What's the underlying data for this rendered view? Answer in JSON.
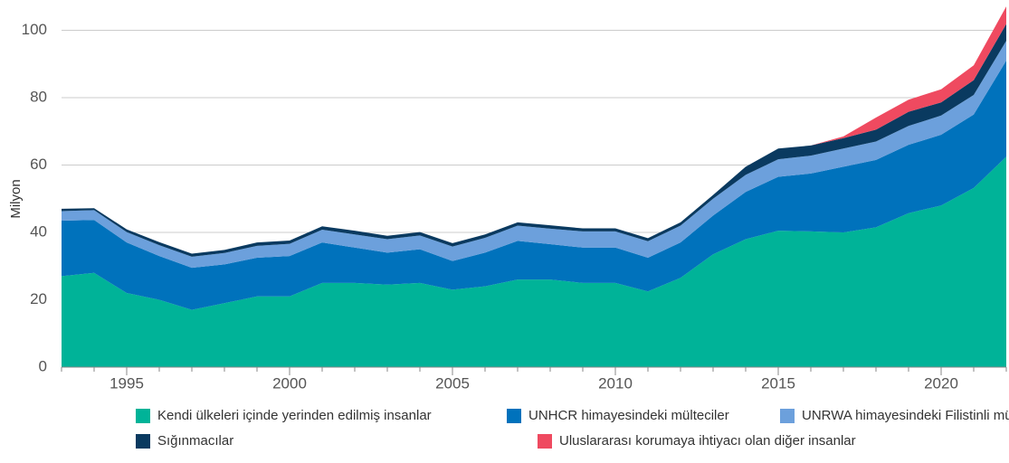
{
  "chart_data": {
    "type": "stacked_area",
    "y_label": "Milyon",
    "x": [
      1993,
      1994,
      1995,
      1996,
      1997,
      1998,
      1999,
      2000,
      2001,
      2002,
      2003,
      2004,
      2005,
      2006,
      2007,
      2008,
      2009,
      2010,
      2011,
      2012,
      2013,
      2014,
      2015,
      2016,
      2017,
      2018,
      2019,
      2020,
      2021,
      2022
    ],
    "series": [
      {
        "name": "Kendi ülkeleri içinde yerinden edilmiş insanlar",
        "color": "#00b398",
        "values": [
          27,
          28,
          22,
          20,
          17,
          19,
          21,
          21,
          25,
          25,
          24.5,
          25,
          23,
          24,
          26,
          26,
          25,
          25,
          22.5,
          26.5,
          33.5,
          38,
          40.5,
          40.3,
          40,
          41.5,
          45.7,
          48,
          53.2,
          62.5
        ]
      },
      {
        "name": "UNHCR himayesindeki mülteciler",
        "color": "#0072bc",
        "values": [
          16.5,
          15.7,
          15,
          13,
          12.5,
          11.5,
          11.5,
          12,
          12,
          10.5,
          9.5,
          10,
          8.5,
          10,
          11.5,
          10.5,
          10.5,
          10.5,
          10,
          10.5,
          11.5,
          14,
          16,
          17.2,
          19.5,
          20,
          20.3,
          21,
          21.8,
          28.5
        ]
      },
      {
        "name": "UNRWA himayesindeki Filistinli mülteciler",
        "color": "#6ca0dc",
        "values": [
          2.8,
          2.9,
          3.1,
          3.2,
          3.3,
          3.4,
          3.5,
          3.6,
          3.8,
          3.9,
          4,
          4.1,
          4.3,
          4.4,
          4.5,
          4.6,
          4.8,
          4.8,
          4.9,
          5,
          5,
          5.1,
          5.2,
          5.3,
          5.4,
          5.5,
          5.6,
          5.7,
          5.8,
          5.9
        ]
      },
      {
        "name": "Sığınmacılar",
        "color": "#0a3a60",
        "values": [
          0.7,
          0.6,
          0.8,
          0.9,
          0.9,
          0.9,
          1,
          1,
          1,
          1.1,
          1,
          1,
          1,
          1,
          1,
          1,
          0.9,
          0.9,
          0.9,
          1,
          1.1,
          2.4,
          3.2,
          3,
          3.1,
          3.5,
          4.2,
          3.9,
          4.4,
          5
        ]
      },
      {
        "name": "Uluslararası korumaya ihtiyacı olan diğer insanlar",
        "color": "#ef4a60",
        "values": [
          0,
          0,
          0,
          0,
          0,
          0,
          0,
          0,
          0,
          0,
          0,
          0,
          0,
          0,
          0,
          0,
          0,
          0,
          0,
          0,
          0,
          0,
          0,
          0,
          0.5,
          3.6,
          3.6,
          3.9,
          4.4,
          5.2
        ]
      }
    ],
    "xlim": [
      1993,
      2022
    ],
    "ylim": [
      0,
      109
    ],
    "xticks": [
      1995,
      2000,
      2005,
      2010,
      2015,
      2020
    ],
    "yticks": [
      0,
      20,
      40,
      60,
      80,
      100
    ],
    "grid": true
  }
}
